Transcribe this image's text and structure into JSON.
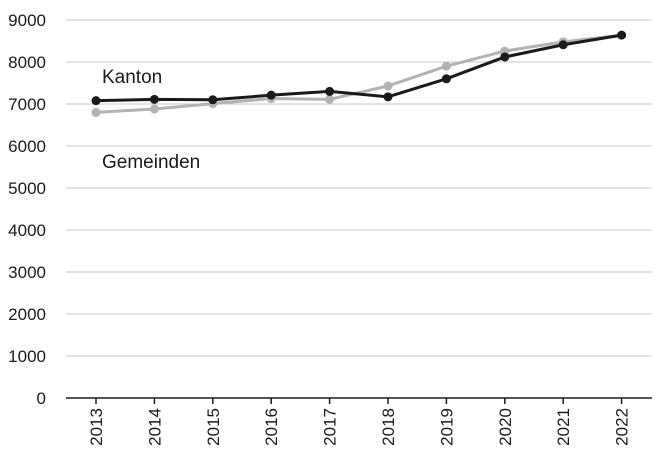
{
  "chart_data": {
    "type": "line",
    "title": "",
    "xlabel": "",
    "ylabel": "",
    "categories": [
      "2013",
      "2014",
      "2015",
      "2016",
      "2017",
      "2018",
      "2019",
      "2020",
      "2021",
      "2022"
    ],
    "yticks": [
      "0",
      "1000",
      "2000",
      "3000",
      "4000",
      "5000",
      "6000",
      "7000",
      "8000",
      "9000"
    ],
    "ylim": [
      0,
      9000
    ],
    "grid": true,
    "legend": "inline labels",
    "series": [
      {
        "name": "Kanton",
        "color": "#1a1a1a",
        "values": [
          7080,
          7110,
          7100,
          7210,
          7300,
          7170,
          7600,
          8120,
          8410,
          8640
        ]
      },
      {
        "name": "Gemeinden",
        "color": "#b3b3b3",
        "values": [
          6800,
          6880,
          7010,
          7130,
          7110,
          7430,
          7900,
          8260,
          8480,
          8640
        ]
      }
    ]
  }
}
